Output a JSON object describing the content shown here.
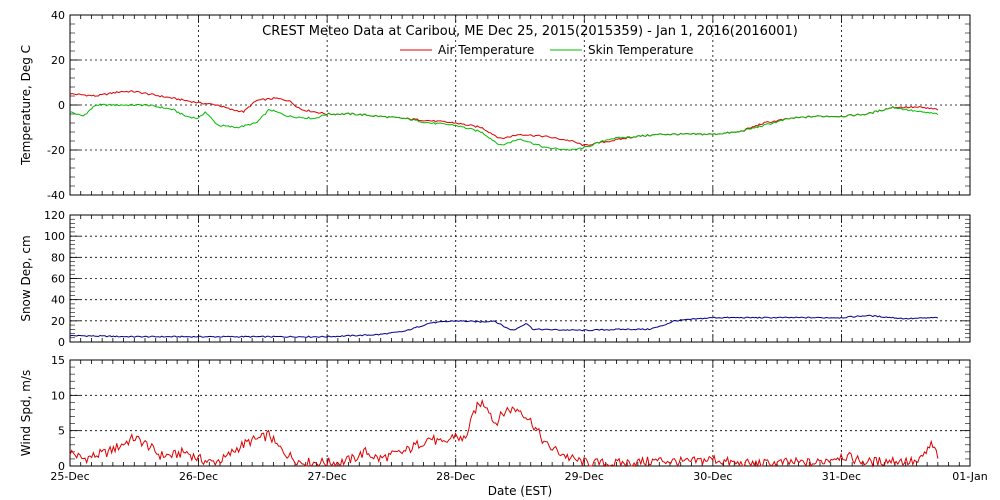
{
  "title": "CREST Meteo Data at Caribou, ME   Dec 25, 2015(2015359) - Jan  1, 2016(2016001)",
  "xlabel": "Date (EST)",
  "x_ticks": [
    "25-Dec",
    "26-Dec",
    "27-Dec",
    "28-Dec",
    "29-Dec",
    "30-Dec",
    "31-Dec",
    "01-Jan"
  ],
  "colors": {
    "air": "#dd0000",
    "skin": "#00bb00",
    "snow": "#000088",
    "wind": "#dd0000"
  },
  "chart_data": [
    {
      "type": "line",
      "id": "temperature",
      "ylabel": "Temperature, Deg C",
      "ylim": [
        -40,
        40
      ],
      "y_ticks": [
        "40",
        "20",
        "0",
        "-20",
        "-40"
      ],
      "xlim_days": [
        0,
        7
      ],
      "grid": true,
      "legend_position": "top-center",
      "series": [
        {
          "name": "Air Temperature",
          "x": [
            0,
            0.2,
            0.4,
            0.5,
            0.7,
            0.9,
            1.0,
            1.15,
            1.25,
            1.35,
            1.45,
            1.6,
            1.7,
            1.8,
            2.0,
            2.2,
            2.4,
            2.6,
            2.8,
            3.0,
            3.1,
            3.2,
            3.35,
            3.5,
            3.7,
            3.9,
            4.0,
            4.2,
            4.4,
            4.6,
            4.8,
            5.0,
            5.2,
            5.4,
            5.6,
            5.8,
            6.0,
            6.2,
            6.4,
            6.6,
            6.75
          ],
          "y": [
            5,
            4,
            6,
            6,
            4,
            2,
            1,
            0,
            -2,
            -3,
            2,
            3,
            2,
            -2,
            -4,
            -4,
            -5,
            -6,
            -7,
            -8,
            -9,
            -10,
            -15,
            -13,
            -14,
            -16,
            -18,
            -16,
            -14,
            -13,
            -13,
            -13,
            -12,
            -8,
            -6,
            -5,
            -5,
            -4,
            -1,
            -1,
            -2
          ]
        },
        {
          "name": "Skin Temperature",
          "x": [
            0,
            0.1,
            0.2,
            0.4,
            0.6,
            0.8,
            0.9,
            1.0,
            1.05,
            1.15,
            1.3,
            1.45,
            1.55,
            1.7,
            1.9,
            2.0,
            2.2,
            2.4,
            2.6,
            2.8,
            3.0,
            3.2,
            3.35,
            3.5,
            3.7,
            3.9,
            4.0,
            4.2,
            4.4,
            4.6,
            4.8,
            5.0,
            5.2,
            5.4,
            5.6,
            5.8,
            6.0,
            6.2,
            6.4,
            6.6,
            6.75
          ],
          "y": [
            -3,
            -5,
            0,
            0,
            0,
            -2,
            -5,
            -6,
            -3,
            -9,
            -10,
            -8,
            -2,
            -5,
            -6,
            -4,
            -4,
            -5,
            -6,
            -8,
            -9,
            -12,
            -18,
            -15,
            -19,
            -20,
            -19,
            -15,
            -14,
            -13,
            -13,
            -13,
            -12,
            -9,
            -6,
            -5,
            -5,
            -4,
            -1,
            -3,
            -4
          ]
        }
      ]
    },
    {
      "type": "line",
      "id": "snow",
      "ylabel": "Snow Dep, cm",
      "ylim": [
        0,
        120
      ],
      "y_ticks": [
        "120",
        "100",
        "80",
        "60",
        "40",
        "20",
        "0"
      ],
      "xlim_days": [
        0,
        7
      ],
      "grid": true,
      "series": [
        {
          "x": [
            0,
            0.5,
            1.0,
            1.5,
            2.0,
            2.2,
            2.4,
            2.6,
            2.7,
            2.8,
            3.0,
            3.2,
            3.3,
            3.4,
            3.45,
            3.55,
            3.6,
            4.0,
            4.3,
            4.5,
            4.6,
            4.7,
            4.9,
            5.0,
            5.5,
            6.0,
            6.2,
            6.5,
            6.75
          ],
          "y": [
            6,
            5,
            5,
            5,
            5,
            6,
            7,
            10,
            14,
            18,
            20,
            19,
            20,
            13,
            11,
            18,
            12,
            11,
            12,
            12,
            15,
            20,
            22,
            23,
            23,
            23,
            25,
            22,
            23
          ]
        }
      ]
    },
    {
      "type": "line",
      "id": "wind",
      "ylabel": "Wind Spd, m/s",
      "ylim": [
        0,
        15
      ],
      "y_ticks": [
        "15",
        "10",
        "5",
        "0"
      ],
      "xlim_days": [
        0,
        7
      ],
      "grid": true,
      "series": [
        {
          "x": [
            0,
            0.1,
            0.2,
            0.3,
            0.4,
            0.5,
            0.6,
            0.7,
            0.8,
            0.9,
            1.0,
            1.1,
            1.2,
            1.3,
            1.4,
            1.5,
            1.55,
            1.6,
            1.7,
            1.8,
            1.9,
            2.0,
            2.1,
            2.2,
            2.3,
            2.4,
            2.5,
            2.6,
            2.7,
            2.8,
            2.9,
            3.0,
            3.05,
            3.1,
            3.15,
            3.2,
            3.25,
            3.3,
            3.35,
            3.4,
            3.5,
            3.6,
            3.7,
            3.8,
            3.9,
            4.0,
            4.2,
            4.4,
            4.6,
            4.8,
            5.0,
            5.1,
            5.2,
            5.4,
            5.6,
            5.8,
            6.0,
            6.2,
            6.4,
            6.6,
            6.7,
            6.75
          ],
          "y": [
            2,
            1,
            1.5,
            2,
            3,
            4,
            3,
            1.5,
            1.5,
            2,
            1,
            0.5,
            1,
            2.5,
            3.5,
            4,
            4.5,
            3,
            1.5,
            0.5,
            0.5,
            0.5,
            0.5,
            1,
            2,
            1,
            1.5,
            2,
            3,
            4,
            3,
            4.5,
            3.5,
            5,
            8,
            9,
            8.5,
            6,
            7,
            8,
            8,
            6,
            3,
            2,
            1,
            0.5,
            0.3,
            0.5,
            0.8,
            0.5,
            1,
            0.6,
            0.3,
            0.3,
            0.5,
            0.4,
            1.5,
            0.5,
            0.8,
            0.5,
            3,
            1.5
          ]
        }
      ]
    }
  ]
}
